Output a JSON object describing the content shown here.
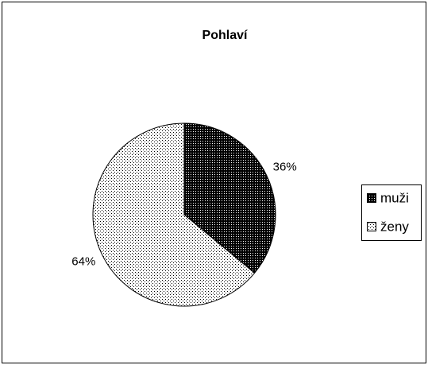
{
  "chart_data": {
    "type": "pie",
    "title": "Pohlaví",
    "categories": [
      "muži",
      "ženy"
    ],
    "values": [
      36,
      64
    ],
    "value_labels": [
      "36%",
      "64%"
    ],
    "colors": [
      "#000000",
      "#ffffff"
    ],
    "legend": "right"
  }
}
